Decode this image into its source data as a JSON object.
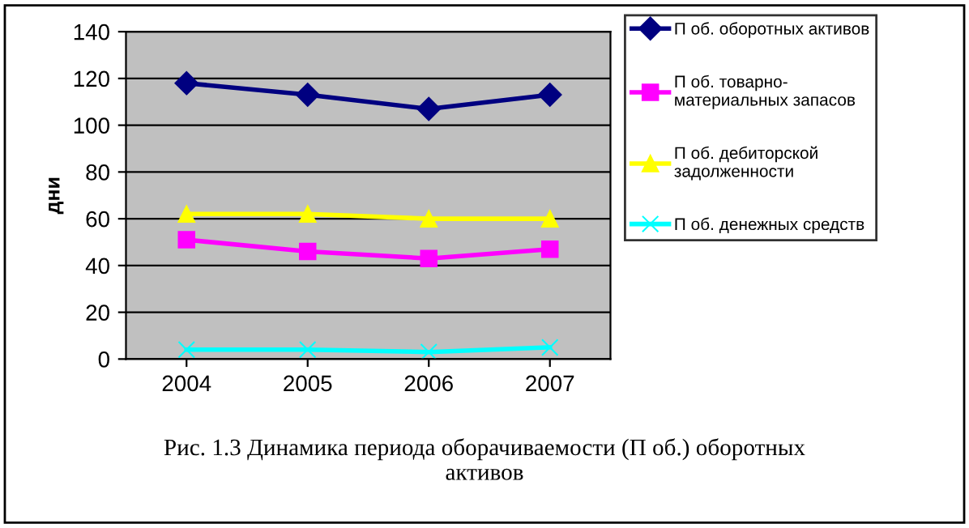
{
  "chart_data": {
    "type": "line",
    "ylabel": "дни",
    "categories": [
      "2004",
      "2005",
      "2006",
      "2007"
    ],
    "series": [
      {
        "name": "П об. оборотных активов",
        "color": "#000080",
        "marker": "diamond",
        "values": [
          118,
          113,
          107,
          113
        ]
      },
      {
        "name": "П об. товарно-\nматериальных запасов",
        "color": "#ff00ff",
        "marker": "square",
        "values": [
          51,
          46,
          43,
          47
        ]
      },
      {
        "name": "П об. дебиторской\nзадолженности",
        "color": "#ffff00",
        "marker": "triangle",
        "values": [
          62,
          62,
          60,
          60
        ]
      },
      {
        "name": "П об. денежных средств",
        "color": "#00ffff",
        "marker": "cross",
        "values": [
          4,
          4,
          3,
          5
        ]
      }
    ],
    "ylim": [
      0,
      140
    ],
    "yticks": [
      0,
      20,
      40,
      60,
      80,
      100,
      120,
      140
    ],
    "grid": "y",
    "legend": "right",
    "annotations": [
      "Рис. 1.3 Динамика периода оборачиваемости (П об.) оборотных\nактивов"
    ]
  }
}
